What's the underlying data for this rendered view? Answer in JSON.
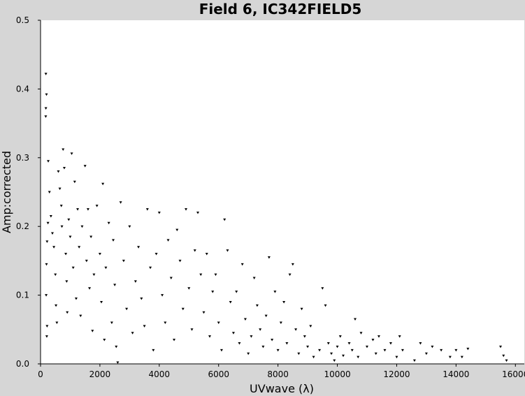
{
  "chart_data": {
    "type": "scatter",
    "title": "Field 6, IC342FIELD5",
    "xlabel": "UVwave (λ)",
    "ylabel": "Amp:corrected",
    "xlim": [
      0,
      16300
    ],
    "ylim": [
      0,
      0.5
    ],
    "xticks": [
      0,
      2000,
      4000,
      6000,
      8000,
      10000,
      12000,
      14000,
      16000
    ],
    "xtick_labels": [
      "0",
      "2000",
      "4000",
      "6000",
      "8000",
      "10000",
      "12000",
      "14000",
      "16000"
    ],
    "yticks": [
      0.0,
      0.1,
      0.2,
      0.3,
      0.4,
      0.5
    ],
    "ytick_labels": [
      "0.0",
      "0.1",
      "0.2",
      "0.3",
      "0.4",
      "0.5"
    ],
    "grid": false,
    "marker": "triangle-down",
    "background": "#d6d6d6",
    "plot_background": "#ffffff",
    "point_color": "#000000",
    "series": [
      {
        "values": [
          {
            "x": 180,
            "y": 0.422
          },
          {
            "x": 200,
            "y": 0.392
          },
          {
            "x": 180,
            "y": 0.372
          },
          {
            "x": 175,
            "y": 0.36
          },
          {
            "x": 260,
            "y": 0.295
          },
          {
            "x": 300,
            "y": 0.25
          },
          {
            "x": 250,
            "y": 0.205
          },
          {
            "x": 220,
            "y": 0.178
          },
          {
            "x": 200,
            "y": 0.145
          },
          {
            "x": 190,
            "y": 0.1
          },
          {
            "x": 220,
            "y": 0.055
          },
          {
            "x": 210,
            "y": 0.04
          },
          {
            "x": 350,
            "y": 0.215
          },
          {
            "x": 400,
            "y": 0.19
          },
          {
            "x": 450,
            "y": 0.17
          },
          {
            "x": 500,
            "y": 0.13
          },
          {
            "x": 520,
            "y": 0.085
          },
          {
            "x": 550,
            "y": 0.06
          },
          {
            "x": 600,
            "y": 0.28
          },
          {
            "x": 650,
            "y": 0.255
          },
          {
            "x": 700,
            "y": 0.23
          },
          {
            "x": 720,
            "y": 0.2
          },
          {
            "x": 760,
            "y": 0.312
          },
          {
            "x": 800,
            "y": 0.285
          },
          {
            "x": 850,
            "y": 0.16
          },
          {
            "x": 880,
            "y": 0.12
          },
          {
            "x": 900,
            "y": 0.075
          },
          {
            "x": 950,
            "y": 0.21
          },
          {
            "x": 1000,
            "y": 0.185
          },
          {
            "x": 1050,
            "y": 0.306
          },
          {
            "x": 1100,
            "y": 0.14
          },
          {
            "x": 1150,
            "y": 0.265
          },
          {
            "x": 1200,
            "y": 0.095
          },
          {
            "x": 1250,
            "y": 0.225
          },
          {
            "x": 1300,
            "y": 0.17
          },
          {
            "x": 1350,
            "y": 0.07
          },
          {
            "x": 1400,
            "y": 0.2
          },
          {
            "x": 1500,
            "y": 0.288
          },
          {
            "x": 1550,
            "y": 0.15
          },
          {
            "x": 1600,
            "y": 0.225
          },
          {
            "x": 1650,
            "y": 0.11
          },
          {
            "x": 1700,
            "y": 0.185
          },
          {
            "x": 1750,
            "y": 0.048
          },
          {
            "x": 1800,
            "y": 0.13
          },
          {
            "x": 1900,
            "y": 0.23
          },
          {
            "x": 2000,
            "y": 0.16
          },
          {
            "x": 2050,
            "y": 0.09
          },
          {
            "x": 2100,
            "y": 0.262
          },
          {
            "x": 2150,
            "y": 0.035
          },
          {
            "x": 2200,
            "y": 0.14
          },
          {
            "x": 2300,
            "y": 0.205
          },
          {
            "x": 2400,
            "y": 0.06
          },
          {
            "x": 2450,
            "y": 0.18
          },
          {
            "x": 2500,
            "y": 0.115
          },
          {
            "x": 2550,
            "y": 0.025
          },
          {
            "x": 2600,
            "y": 0.002
          },
          {
            "x": 2700,
            "y": 0.235
          },
          {
            "x": 2800,
            "y": 0.15
          },
          {
            "x": 2900,
            "y": 0.08
          },
          {
            "x": 3000,
            "y": 0.2
          },
          {
            "x": 3100,
            "y": 0.045
          },
          {
            "x": 3200,
            "y": 0.12
          },
          {
            "x": 3300,
            "y": 0.17
          },
          {
            "x": 3400,
            "y": 0.095
          },
          {
            "x": 3500,
            "y": 0.055
          },
          {
            "x": 3600,
            "y": 0.225
          },
          {
            "x": 3700,
            "y": 0.14
          },
          {
            "x": 3800,
            "y": 0.02
          },
          {
            "x": 3900,
            "y": 0.16
          },
          {
            "x": 4000,
            "y": 0.22
          },
          {
            "x": 4100,
            "y": 0.1
          },
          {
            "x": 4200,
            "y": 0.06
          },
          {
            "x": 4300,
            "y": 0.18
          },
          {
            "x": 4400,
            "y": 0.125
          },
          {
            "x": 4500,
            "y": 0.035
          },
          {
            "x": 4600,
            "y": 0.195
          },
          {
            "x": 4700,
            "y": 0.15
          },
          {
            "x": 4800,
            "y": 0.08
          },
          {
            "x": 4900,
            "y": 0.225
          },
          {
            "x": 5000,
            "y": 0.11
          },
          {
            "x": 5100,
            "y": 0.05
          },
          {
            "x": 5200,
            "y": 0.165
          },
          {
            "x": 5300,
            "y": 0.22
          },
          {
            "x": 5400,
            "y": 0.13
          },
          {
            "x": 5500,
            "y": 0.075
          },
          {
            "x": 5600,
            "y": 0.16
          },
          {
            "x": 5700,
            "y": 0.04
          },
          {
            "x": 5800,
            "y": 0.105
          },
          {
            "x": 5900,
            "y": 0.13
          },
          {
            "x": 6000,
            "y": 0.06
          },
          {
            "x": 6100,
            "y": 0.02
          },
          {
            "x": 6200,
            "y": 0.21
          },
          {
            "x": 6300,
            "y": 0.165
          },
          {
            "x": 6400,
            "y": 0.09
          },
          {
            "x": 6500,
            "y": 0.045
          },
          {
            "x": 6600,
            "y": 0.105
          },
          {
            "x": 6700,
            "y": 0.03
          },
          {
            "x": 6800,
            "y": 0.145
          },
          {
            "x": 6900,
            "y": 0.065
          },
          {
            "x": 7000,
            "y": 0.015
          },
          {
            "x": 7100,
            "y": 0.04
          },
          {
            "x": 7200,
            "y": 0.125
          },
          {
            "x": 7300,
            "y": 0.085
          },
          {
            "x": 7400,
            "y": 0.05
          },
          {
            "x": 7500,
            "y": 0.025
          },
          {
            "x": 7600,
            "y": 0.07
          },
          {
            "x": 7700,
            "y": 0.155
          },
          {
            "x": 7800,
            "y": 0.035
          },
          {
            "x": 7900,
            "y": 0.105
          },
          {
            "x": 8000,
            "y": 0.02
          },
          {
            "x": 8100,
            "y": 0.06
          },
          {
            "x": 8200,
            "y": 0.09
          },
          {
            "x": 8300,
            "y": 0.03
          },
          {
            "x": 8400,
            "y": 0.13
          },
          {
            "x": 8500,
            "y": 0.145
          },
          {
            "x": 8600,
            "y": 0.05
          },
          {
            "x": 8700,
            "y": 0.015
          },
          {
            "x": 8800,
            "y": 0.08
          },
          {
            "x": 8900,
            "y": 0.04
          },
          {
            "x": 9000,
            "y": 0.025
          },
          {
            "x": 9100,
            "y": 0.055
          },
          {
            "x": 9200,
            "y": 0.01
          },
          {
            "x": 9400,
            "y": 0.02
          },
          {
            "x": 9500,
            "y": 0.11
          },
          {
            "x": 9600,
            "y": 0.085
          },
          {
            "x": 9700,
            "y": 0.03
          },
          {
            "x": 9800,
            "y": 0.015
          },
          {
            "x": 9900,
            "y": 0.005
          },
          {
            "x": 10000,
            "y": 0.025
          },
          {
            "x": 10100,
            "y": 0.04
          },
          {
            "x": 10200,
            "y": 0.012
          },
          {
            "x": 10400,
            "y": 0.03
          },
          {
            "x": 10500,
            "y": 0.02
          },
          {
            "x": 10600,
            "y": 0.065
          },
          {
            "x": 10700,
            "y": 0.01
          },
          {
            "x": 10800,
            "y": 0.045
          },
          {
            "x": 11000,
            "y": 0.025
          },
          {
            "x": 11200,
            "y": 0.035
          },
          {
            "x": 11300,
            "y": 0.015
          },
          {
            "x": 11400,
            "y": 0.04
          },
          {
            "x": 11600,
            "y": 0.02
          },
          {
            "x": 11800,
            "y": 0.03
          },
          {
            "x": 12000,
            "y": 0.01
          },
          {
            "x": 12100,
            "y": 0.04
          },
          {
            "x": 12200,
            "y": 0.02
          },
          {
            "x": 12600,
            "y": 0.005
          },
          {
            "x": 12800,
            "y": 0.03
          },
          {
            "x": 13000,
            "y": 0.015
          },
          {
            "x": 13200,
            "y": 0.025
          },
          {
            "x": 13500,
            "y": 0.02
          },
          {
            "x": 13800,
            "y": 0.01
          },
          {
            "x": 14000,
            "y": 0.02
          },
          {
            "x": 14200,
            "y": 0.01
          },
          {
            "x": 14400,
            "y": 0.022
          },
          {
            "x": 15500,
            "y": 0.025
          },
          {
            "x": 15600,
            "y": 0.012
          },
          {
            "x": 15700,
            "y": 0.005
          }
        ]
      }
    ]
  }
}
